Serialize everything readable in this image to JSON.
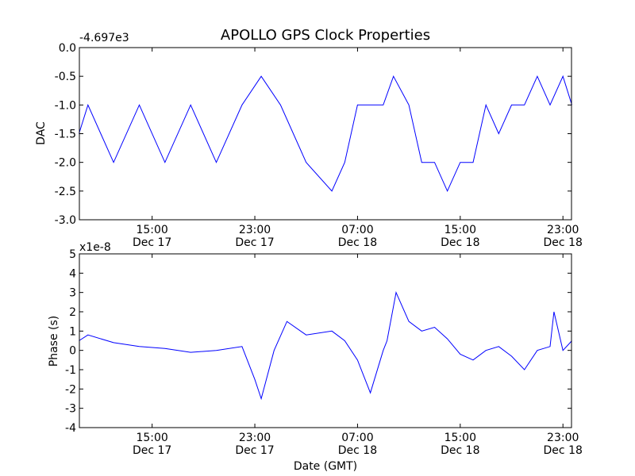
{
  "chart_data": [
    {
      "type": "line",
      "title": "APOLLO GPS Clock Properties",
      "ylabel": "DAC",
      "xlabel": "",
      "offset_label": "-4.697e3",
      "color": "#0000ff",
      "xlim": [
        "Dec 17 09:20",
        "Dec 18 23:40"
      ],
      "ylim": [
        -3.0,
        0.0
      ],
      "yticks": [
        "-3.0",
        "-2.5",
        "-2.0",
        "-1.5",
        "-1.0",
        "-0.5",
        "0.0"
      ],
      "xticks": [
        {
          "time": "15:00",
          "date": "Dec 17"
        },
        {
          "time": "23:00",
          "date": "Dec 17"
        },
        {
          "time": "07:00",
          "date": "Dec 18"
        },
        {
          "time": "15:00",
          "date": "Dec 18"
        },
        {
          "time": "23:00",
          "date": "Dec 18"
        }
      ],
      "x_hours_since_dec17_0000": [
        9.3,
        10.0,
        12.0,
        14.0,
        16.0,
        18.0,
        20.0,
        22.0,
        23.5,
        25.0,
        27.0,
        29.0,
        30.0,
        31.0,
        33.0,
        33.8,
        35.0,
        36.0,
        37.0,
        38.0,
        39.0,
        40.0,
        41.0,
        42.0,
        43.0,
        44.0,
        45.0,
        46.0,
        47.0,
        47.7
      ],
      "y_values": [
        -1.5,
        -1.0,
        -2.0,
        -1.0,
        -2.0,
        -1.0,
        -2.0,
        -1.0,
        -0.5,
        -1.0,
        -2.0,
        -2.5,
        -2.0,
        -1.0,
        -1.0,
        -0.5,
        -1.0,
        -2.0,
        -2.0,
        -2.5,
        -2.0,
        -2.0,
        -1.0,
        -1.5,
        -1.0,
        -1.0,
        -0.5,
        -1.0,
        -0.5,
        -1.0
      ]
    },
    {
      "type": "line",
      "title": "",
      "ylabel": "Phase (s)",
      "xlabel": "Date (GMT)",
      "offset_label": "x1e-8",
      "color": "#0000ff",
      "xlim": [
        "Dec 17 09:20",
        "Dec 18 23:40"
      ],
      "ylim": [
        -4,
        5
      ],
      "yticks": [
        "-4",
        "-3",
        "-2",
        "-1",
        "0",
        "1",
        "2",
        "3",
        "4",
        "5"
      ],
      "xticks": [
        {
          "time": "15:00",
          "date": "Dec 17"
        },
        {
          "time": "23:00",
          "date": "Dec 17"
        },
        {
          "time": "07:00",
          "date": "Dec 18"
        },
        {
          "time": "15:00",
          "date": "Dec 18"
        },
        {
          "time": "23:00",
          "date": "Dec 18"
        }
      ],
      "x_hours_since_dec17_0000": [
        9.3,
        10.0,
        12.0,
        14.0,
        16.0,
        18.0,
        20.0,
        22.0,
        23.0,
        23.5,
        24.5,
        25.5,
        27.0,
        29.0,
        30.0,
        31.0,
        32.0,
        33.0,
        33.3,
        34.0,
        35.0,
        36.0,
        37.0,
        38.0,
        39.0,
        40.0,
        41.0,
        42.0,
        43.0,
        44.0,
        45.0,
        46.0,
        46.3,
        47.0,
        47.7
      ],
      "y_values": [
        0.5,
        0.8,
        0.4,
        0.2,
        0.1,
        -0.1,
        0.0,
        0.2,
        -1.5,
        -2.5,
        0.0,
        1.5,
        0.8,
        1.0,
        0.5,
        -0.5,
        -2.2,
        0.0,
        0.5,
        3.0,
        1.5,
        1.0,
        1.2,
        0.6,
        -0.2,
        -0.5,
        0.0,
        0.2,
        -0.3,
        -1.0,
        0.0,
        0.2,
        2.0,
        0.0,
        0.5
      ]
    }
  ]
}
